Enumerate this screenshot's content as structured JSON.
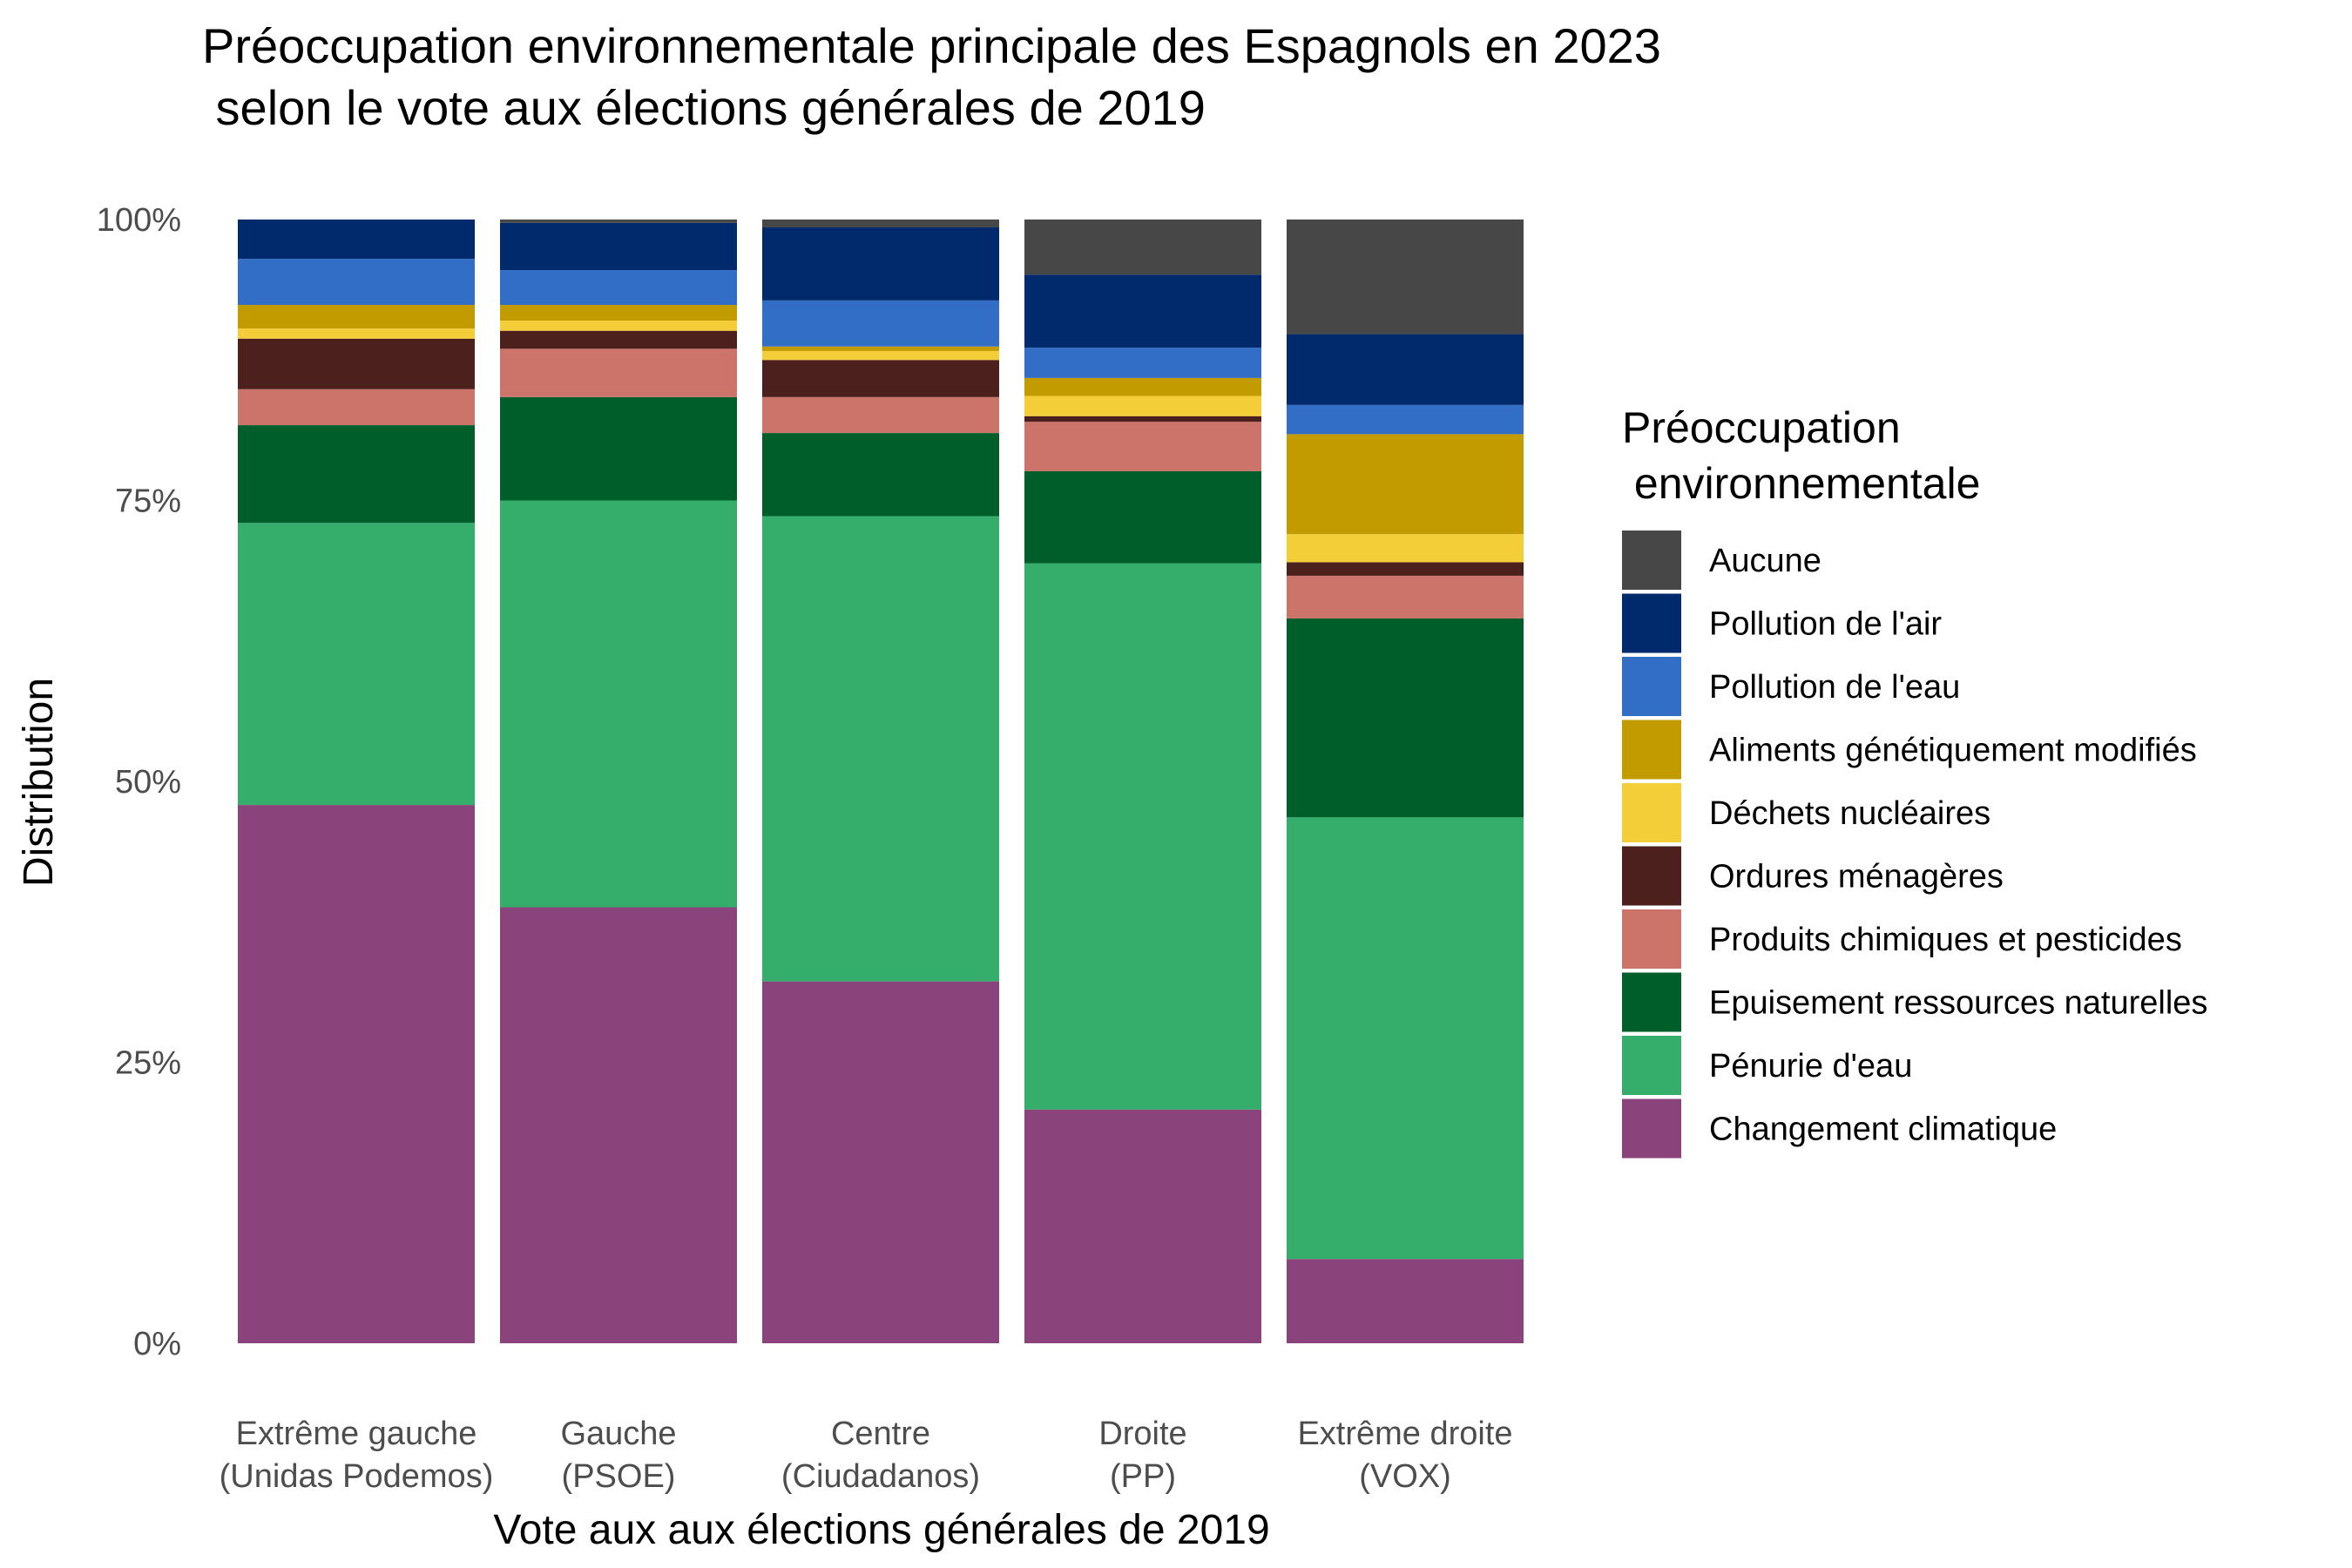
{
  "chart_data": {
    "type": "bar",
    "stacked": true,
    "title": [
      "Préoccupation environnementale principale des Espagnols en 2023",
      " selon le vote aux élections générales de 2019"
    ],
    "xlabel": "Vote aux aux élections générales de 2019",
    "ylabel": "Distribution",
    "ylim": [
      0,
      1
    ],
    "yticks": [
      "0%",
      "25%",
      "50%",
      "75%",
      "100%"
    ],
    "grid": false,
    "legend": {
      "title": [
        "Préoccupation",
        " environnementale"
      ],
      "placement": "right"
    },
    "categories": [
      [
        "Extrême gauche",
        "(Unidas Podemos)"
      ],
      [
        "Gauche",
        "(PSOE)"
      ],
      [
        "Centre",
        "(Ciudadanos)"
      ],
      [
        "Droite",
        "(PP)"
      ],
      [
        "Extrême droite",
        "(VOX)"
      ]
    ],
    "series": [
      {
        "name": "Changement climatique",
        "color": "#8B447B",
        "values": [
          0.479,
          0.388,
          0.322,
          0.208,
          0.075
        ]
      },
      {
        "name": "Pénurie d'eau",
        "color": "#35AE6B",
        "values": [
          0.251,
          0.362,
          0.414,
          0.486,
          0.393
        ]
      },
      {
        "name": "Epuisement ressources naturelles",
        "color": "#005E2B",
        "values": [
          0.087,
          0.092,
          0.074,
          0.082,
          0.177
        ]
      },
      {
        "name": "Produits chimiques et pesticides",
        "color": "#CC746A",
        "values": [
          0.032,
          0.043,
          0.032,
          0.044,
          0.038
        ]
      },
      {
        "name": "Ordures ménagères",
        "color": "#4C201C",
        "values": [
          0.045,
          0.016,
          0.033,
          0.005,
          0.012
        ]
      },
      {
        "name": "Déchets nucléaires",
        "color": "#F4CE39",
        "values": [
          0.009,
          0.009,
          0.008,
          0.018,
          0.025
        ]
      },
      {
        "name": "Aliments génétiquement modifiés",
        "color": "#C29B00",
        "values": [
          0.021,
          0.014,
          0.004,
          0.016,
          0.089
        ]
      },
      {
        "name": "Pollution de l'eau",
        "color": "#336EC6",
        "values": [
          0.041,
          0.031,
          0.041,
          0.027,
          0.026
        ]
      },
      {
        "name": "Pollution de l'air",
        "color": "#002A6B",
        "values": [
          0.035,
          0.042,
          0.065,
          0.065,
          0.063
        ]
      },
      {
        "name": "Aucune",
        "color": "#474747",
        "values": [
          0.0,
          0.003,
          0.007,
          0.049,
          0.102
        ]
      }
    ]
  }
}
